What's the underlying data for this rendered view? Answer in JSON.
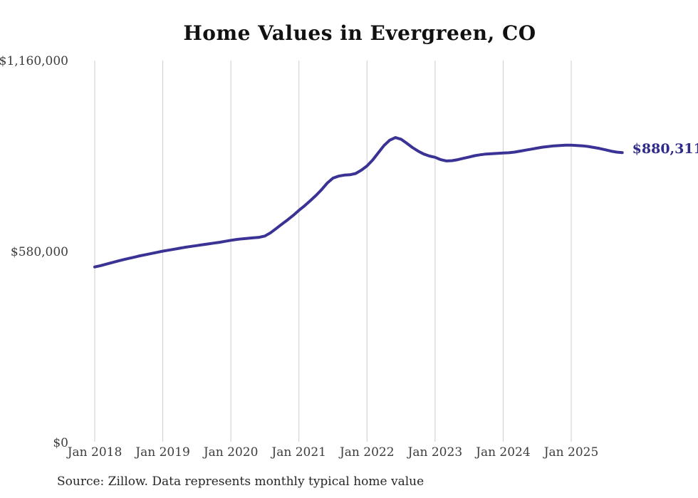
{
  "title": "Home Values in Evergreen, CO",
  "source_note": "Source: Zillow. Data represents monthly typical home value",
  "end_label": "$880,311",
  "colors": {
    "line": "#3a3294",
    "end_label": "#2e2b8b",
    "grid": "#cccccc",
    "axis_text": "#3d3d3d",
    "title_text": "#111111",
    "source_text": "#262626",
    "background": "#ffffff"
  },
  "chart_data": {
    "type": "line",
    "title": "Home Values in Evergreen, CO",
    "xlabel": "",
    "ylabel": "",
    "ylim": [
      0,
      1160000
    ],
    "grid": "vertical-only",
    "legend": "none",
    "latest_value": 880311,
    "latest_value_label": "$880,311",
    "y_ticks": [
      {
        "value": 0,
        "label": "$0"
      },
      {
        "value": 580000,
        "label": "$580,000"
      },
      {
        "value": 1160000,
        "label": "$1,160,000"
      }
    ],
    "x_ticks": [
      {
        "i": 0,
        "label": "Jan 2018"
      },
      {
        "i": 12,
        "label": "Jan 2019"
      },
      {
        "i": 24,
        "label": "Jan 2020"
      },
      {
        "i": 36,
        "label": "Jan 2021"
      },
      {
        "i": 48,
        "label": "Jan 2022"
      },
      {
        "i": 60,
        "label": "Jan 2023"
      },
      {
        "i": 72,
        "label": "Jan 2024"
      },
      {
        "i": 84,
        "label": "Jan 2025"
      }
    ],
    "x": [
      "2018-01",
      "2018-02",
      "2018-03",
      "2018-04",
      "2018-05",
      "2018-06",
      "2018-07",
      "2018-08",
      "2018-09",
      "2018-10",
      "2018-11",
      "2018-12",
      "2019-01",
      "2019-02",
      "2019-03",
      "2019-04",
      "2019-05",
      "2019-06",
      "2019-07",
      "2019-08",
      "2019-09",
      "2019-10",
      "2019-11",
      "2019-12",
      "2020-01",
      "2020-02",
      "2020-03",
      "2020-04",
      "2020-05",
      "2020-06",
      "2020-07",
      "2020-08",
      "2020-09",
      "2020-10",
      "2020-11",
      "2020-12",
      "2021-01",
      "2021-02",
      "2021-03",
      "2021-04",
      "2021-05",
      "2021-06",
      "2021-07",
      "2021-08",
      "2021-09",
      "2021-10",
      "2021-11",
      "2021-12",
      "2022-01",
      "2022-02",
      "2022-03",
      "2022-04",
      "2022-05",
      "2022-06",
      "2022-07",
      "2022-08",
      "2022-09",
      "2022-10",
      "2022-11",
      "2022-12",
      "2023-01",
      "2023-02",
      "2023-03",
      "2023-04",
      "2023-05",
      "2023-06",
      "2023-07",
      "2023-08",
      "2023-09",
      "2023-10",
      "2023-11",
      "2023-12",
      "2024-01",
      "2024-02",
      "2024-03",
      "2024-04",
      "2024-05",
      "2024-06",
      "2024-07",
      "2024-08",
      "2024-09",
      "2024-10",
      "2024-11",
      "2024-12",
      "2025-01",
      "2025-02",
      "2025-03",
      "2025-04",
      "2025-05",
      "2025-06",
      "2025-07",
      "2025-08",
      "2025-09",
      "2025-10"
    ],
    "values": [
      533000,
      537000,
      541500,
      546000,
      550500,
      555000,
      559000,
      563000,
      567000,
      570500,
      574000,
      577500,
      581000,
      584000,
      587000,
      590000,
      593000,
      595500,
      598000,
      600500,
      603000,
      605500,
      608000,
      611000,
      614000,
      616500,
      618500,
      620000,
      621500,
      623000,
      627000,
      637000,
      650000,
      663000,
      676000,
      690000,
      705000,
      719000,
      734000,
      750000,
      768000,
      788000,
      803000,
      809000,
      812000,
      813000,
      817000,
      827000,
      840000,
      858000,
      880000,
      902000,
      918000,
      926000,
      921000,
      909000,
      896000,
      885000,
      876000,
      870000,
      866000,
      859000,
      855000,
      856000,
      859000,
      863000,
      867000,
      871000,
      874000,
      876000,
      877000,
      878000,
      879000,
      880000,
      882000,
      885000,
      888000,
      891000,
      894000,
      897000,
      899000,
      901000,
      902000,
      903000,
      903000,
      902000,
      901000,
      899000,
      896000,
      893000,
      889000,
      885000,
      882000,
      880311
    ]
  }
}
